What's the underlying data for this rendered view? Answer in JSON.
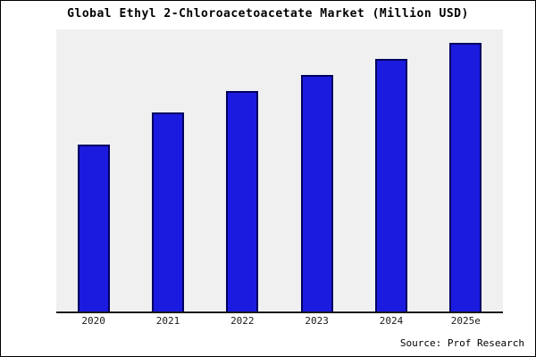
{
  "source": "Source: Prof Research",
  "chart_data": {
    "type": "bar",
    "title": "Global Ethyl 2-Chloroacetoacetate Market (Million USD)",
    "categories": [
      "2020",
      "2021",
      "2022",
      "2023",
      "2024",
      "2025e"
    ],
    "values": [
      62,
      74,
      82,
      88,
      94,
      100
    ],
    "xlabel": "",
    "ylabel": "",
    "ylim": [
      0,
      105
    ],
    "grid": false,
    "legend": false,
    "colors": {
      "bar_fill": "#1b1be0",
      "bar_border": "#000060",
      "plot_bg": "#f0f0f0",
      "axis": "#1a1a1a"
    }
  }
}
